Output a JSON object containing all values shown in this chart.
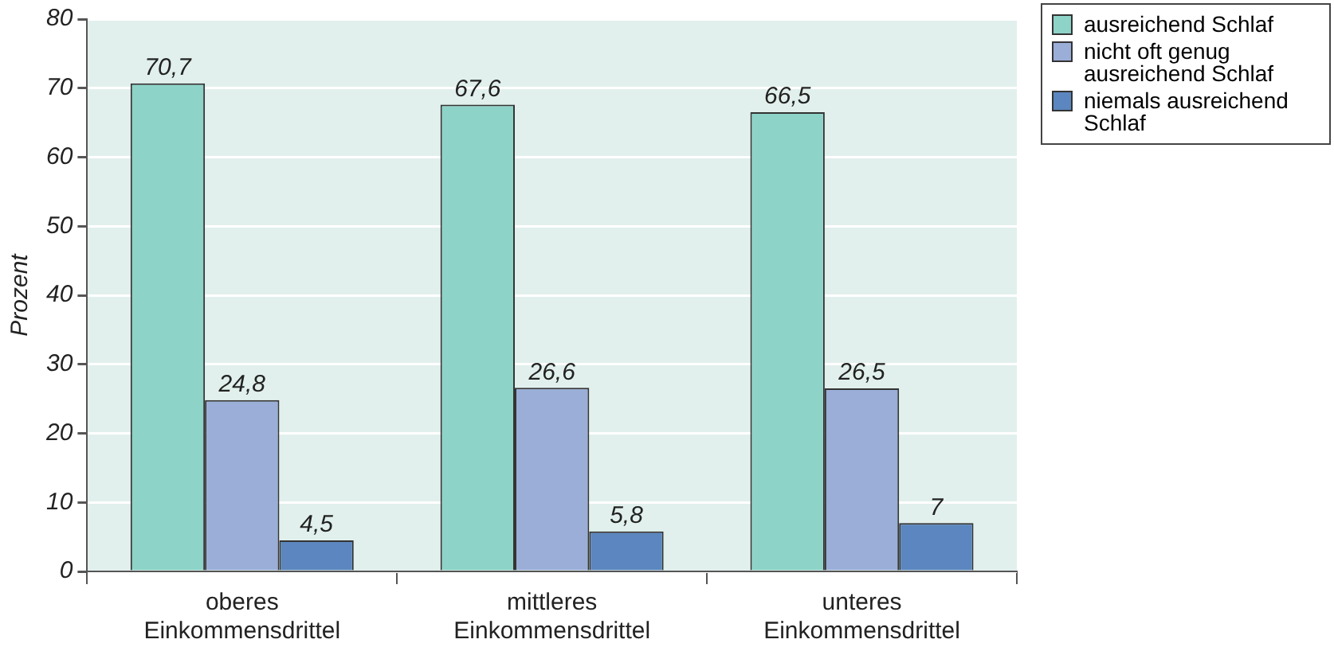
{
  "chart_data": {
    "type": "bar",
    "ylabel": "Prozent",
    "categories": [
      "oberes Einkommensdrittel",
      "mittleres Einkommensdrittel",
      "unteres Einkommensdrittel"
    ],
    "series": [
      {
        "name": "ausreichend Schlaf",
        "color": "#8dd3c8",
        "values": [
          70.7,
          67.6,
          66.5
        ],
        "value_labels": [
          "70,7",
          "67,6",
          "66,5"
        ]
      },
      {
        "name": "nicht oft genug ausreichend Schlaf",
        "color": "#9aaed8",
        "values": [
          24.8,
          26.6,
          26.5
        ],
        "value_labels": [
          "24,8",
          "26,6",
          "26,5"
        ]
      },
      {
        "name": "niemals ausreichend Schlaf",
        "color": "#5b86bf",
        "values": [
          4.5,
          5.8,
          7
        ],
        "value_labels": [
          "4,5",
          "5,8",
          "7"
        ]
      }
    ],
    "ylim": [
      0,
      80
    ],
    "yticks": [
      0,
      10,
      20,
      30,
      40,
      50,
      60,
      70,
      80
    ],
    "grid": "y",
    "legend": "top right"
  }
}
